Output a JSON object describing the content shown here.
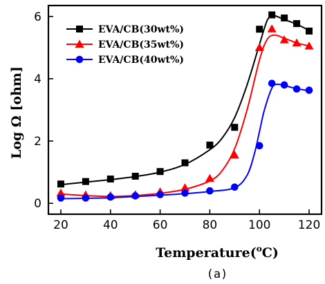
{
  "chart_data": {
    "type": "line",
    "title": "",
    "xlabel_main": "Temperature(",
    "xlabel_sup": "o",
    "xlabel_end": "C)",
    "ylabel": "Log Ω [ohm]",
    "caption": "(a)",
    "xlim": [
      15,
      125
    ],
    "ylim": [
      -0.35,
      6.35
    ],
    "xticks": [
      20,
      40,
      60,
      80,
      100,
      120
    ],
    "yticks": [
      0,
      2,
      4,
      6
    ],
    "legend_position": "top-left",
    "series": [
      {
        "name": "EVA/CB(30wt%)",
        "color": "#000000",
        "marker": "square",
        "x": [
          20,
          30,
          40,
          50,
          60,
          70,
          80,
          90,
          100,
          105,
          110,
          115,
          120
        ],
        "values": [
          0.62,
          0.7,
          0.78,
          0.87,
          1.02,
          1.3,
          1.87,
          2.44,
          5.59,
          6.05,
          5.95,
          5.77,
          5.53
        ],
        "curve_x": [
          20,
          30,
          40,
          50,
          60,
          70,
          80,
          85,
          90,
          95,
          100,
          103,
          105,
          107,
          110,
          115,
          120
        ],
        "curve_y": [
          0.6,
          0.68,
          0.76,
          0.86,
          1.0,
          1.25,
          1.72,
          2.1,
          2.75,
          3.8,
          5.1,
          5.85,
          6.03,
          6.0,
          5.9,
          5.75,
          5.55
        ]
      },
      {
        "name": "EVA/CB(35wt%)",
        "color": "#ff0000",
        "marker": "triangle",
        "x": [
          20,
          30,
          40,
          50,
          60,
          70,
          80,
          90,
          100,
          105,
          110,
          115,
          120
        ],
        "values": [
          0.33,
          0.27,
          0.25,
          0.28,
          0.37,
          0.5,
          0.8,
          1.55,
          5.0,
          5.6,
          5.25,
          5.15,
          5.05
        ],
        "curve_x": [
          20,
          30,
          40,
          50,
          60,
          70,
          80,
          85,
          90,
          95,
          100,
          103,
          106,
          110,
          115,
          120
        ],
        "curve_y": [
          0.3,
          0.25,
          0.22,
          0.25,
          0.32,
          0.45,
          0.72,
          1.05,
          1.75,
          3.0,
          4.6,
          5.25,
          5.4,
          5.3,
          5.15,
          5.05
        ]
      },
      {
        "name": "EVA/CB(40wt%)",
        "color": "#0000ff",
        "marker": "circle",
        "x": [
          20,
          30,
          40,
          50,
          60,
          70,
          80,
          90,
          100,
          105,
          110,
          115,
          120
        ],
        "values": [
          0.17,
          0.17,
          0.2,
          0.24,
          0.28,
          0.33,
          0.4,
          0.52,
          1.85,
          3.85,
          3.8,
          3.67,
          3.63
        ],
        "curve_x": [
          20,
          30,
          40,
          50,
          60,
          70,
          80,
          90,
          95,
          98,
          100,
          102,
          105,
          107,
          110,
          115,
          120
        ],
        "curve_y": [
          0.15,
          0.16,
          0.18,
          0.22,
          0.26,
          0.31,
          0.38,
          0.5,
          0.9,
          1.6,
          2.3,
          3.0,
          3.7,
          3.82,
          3.78,
          3.68,
          3.62
        ]
      }
    ]
  }
}
